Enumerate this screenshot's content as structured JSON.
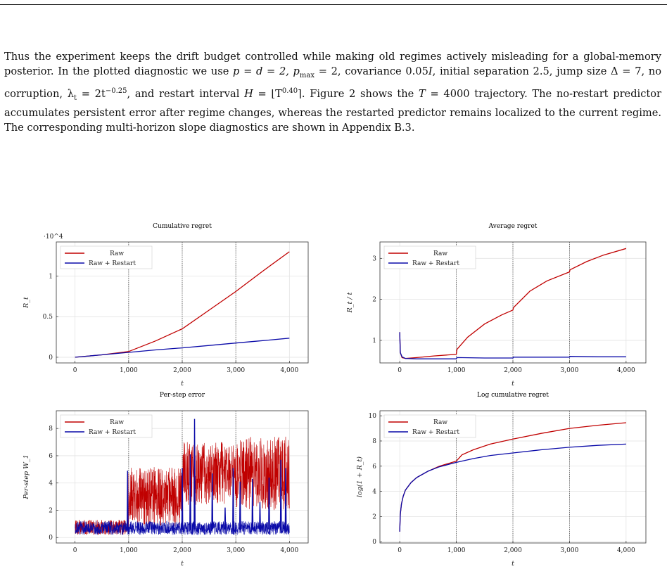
{
  "paragraph": {
    "s1": "Thus the experiment keeps the drift budget controlled while making old regimes actively misleading for a global-memory posterior. In the plotted diagnostic we use ",
    "s2": "p = d = 2, p",
    "s2sub": "max",
    "s3": " = 2, covariance 0.05",
    "s3i": "I",
    "s4": ", initial separation 2.5, jump size Δ = 7, no corruption, λ",
    "s4sub": "t",
    "s5": " = 2t",
    "s5sup": "−0.25",
    "s6": ", and restart interval ",
    "s6i": "H",
    "s7": " = ⌊T",
    "s7sup": "0.40",
    "s8": "⌉. Figure 2 shows the ",
    "s8i": "T",
    "s9": " = 4000 trajectory. The no-restart predictor accumulates persistent error after regime changes, whereas the restarted predictor remains localized to the current regime. The corresponding multi-horizon slope diagnostics are shown in Appendix B.3."
  },
  "colors": {
    "raw": "#c00000",
    "restart": "#0a0aa8"
  },
  "chart_data": [
    {
      "type": "line",
      "title": "Cumulative regret",
      "xlabel": "t",
      "ylabel": "R_t",
      "scale_note": "·10^4",
      "xlim": [
        -350,
        4350
      ],
      "ylim": [
        -0.07,
        1.42
      ],
      "xticks": [
        0,
        1000,
        2000,
        3000,
        4000
      ],
      "xtick_labels": [
        "0",
        "1,000",
        "2,000",
        "3,000",
        "4,000"
      ],
      "yticks": [
        0,
        0.5,
        1
      ],
      "ytick_labels": [
        "0",
        "0.5",
        "1"
      ],
      "vlines": [
        1000,
        2000,
        3000
      ],
      "legend": [
        "Raw",
        "Raw + Restart"
      ],
      "series": [
        {
          "name": "Raw",
          "x": [
            0,
            500,
            1000,
            1500,
            2000,
            2500,
            3000,
            3500,
            4000
          ],
          "values": [
            0,
            0.03,
            0.07,
            0.2,
            0.35,
            0.58,
            0.81,
            1.06,
            1.3
          ]
        },
        {
          "name": "Raw + Restart",
          "x": [
            0,
            500,
            1000,
            1500,
            2000,
            2500,
            3000,
            3500,
            4000
          ],
          "values": [
            0,
            0.03,
            0.06,
            0.09,
            0.115,
            0.145,
            0.175,
            0.205,
            0.235
          ]
        }
      ]
    },
    {
      "type": "line",
      "title": "Average regret",
      "xlabel": "t",
      "ylabel": "R_t / t",
      "xlim": [
        -350,
        4350
      ],
      "ylim": [
        0.45,
        3.4
      ],
      "xticks": [
        0,
        1000,
        2000,
        3000,
        4000
      ],
      "xtick_labels": [
        "0",
        "1,000",
        "2,000",
        "3,000",
        "4,000"
      ],
      "yticks": [
        1,
        2,
        3
      ],
      "ytick_labels": [
        "1",
        "2",
        "3"
      ],
      "vlines": [
        1000,
        2000,
        3000
      ],
      "legend": [
        "Raw",
        "Raw + Restart"
      ],
      "series": [
        {
          "name": "Raw",
          "x": [
            0,
            10,
            40,
            100,
            300,
            600,
            1000,
            1010,
            1200,
            1500,
            1800,
            2000,
            2010,
            2300,
            2600,
            3000,
            3010,
            3300,
            3600,
            4000
          ],
          "values": [
            1.2,
            0.7,
            0.58,
            0.56,
            0.58,
            0.62,
            0.66,
            0.78,
            1.08,
            1.4,
            1.62,
            1.74,
            1.8,
            2.2,
            2.45,
            2.67,
            2.72,
            2.92,
            3.08,
            3.24
          ]
        },
        {
          "name": "Raw + Restart",
          "x": [
            0,
            10,
            40,
            100,
            300,
            600,
            1000,
            1010,
            1500,
            2000,
            2010,
            2500,
            3000,
            3010,
            3500,
            4000
          ],
          "values": [
            1.2,
            0.7,
            0.6,
            0.56,
            0.55,
            0.55,
            0.55,
            0.58,
            0.57,
            0.57,
            0.59,
            0.59,
            0.59,
            0.61,
            0.6,
            0.6
          ]
        }
      ]
    },
    {
      "type": "line",
      "title": "Per-step error",
      "xlabel": "t",
      "ylabel": "Per-step W_1",
      "xlim": [
        -350,
        4350
      ],
      "ylim": [
        -0.4,
        9.3
      ],
      "xticks": [
        0,
        1000,
        2000,
        3000,
        4000
      ],
      "xtick_labels": [
        "0",
        "1,000",
        "2,000",
        "3,000",
        "4,000"
      ],
      "yticks": [
        0,
        2,
        4,
        6,
        8
      ],
      "ytick_labels": [
        "0",
        "2",
        "4",
        "6",
        "8"
      ],
      "vlines": [
        1000,
        2000,
        3000
      ],
      "legend": [
        "Raw",
        "Raw + Restart"
      ],
      "series": [
        {
          "name": "Raw",
          "regimes": [
            {
              "from": 0,
              "to": 1000,
              "low": 0.2,
              "high": 1.3
            },
            {
              "from": 1000,
              "to": 2000,
              "low": 0.8,
              "high": 5.2
            },
            {
              "from": 2000,
              "to": 3000,
              "low": 2.4,
              "high": 7.0
            },
            {
              "from": 3000,
              "to": 4000,
              "low": 2.0,
              "high": 7.4
            }
          ]
        },
        {
          "name": "Raw + Restart",
          "base_low": 0.2,
          "base_high": 1.2,
          "spikes": [
            {
              "x": 980,
              "h": 4.9
            },
            {
              "x": 2000,
              "h": 5.1
            },
            {
              "x": 2150,
              "h": 6.1
            },
            {
              "x": 2230,
              "h": 8.7
            },
            {
              "x": 2560,
              "h": 4.7
            },
            {
              "x": 2800,
              "h": 2.2
            },
            {
              "x": 2950,
              "h": 5.1
            },
            {
              "x": 3080,
              "h": 4.1
            },
            {
              "x": 3310,
              "h": 4.3
            },
            {
              "x": 3450,
              "h": 2.6
            },
            {
              "x": 3620,
              "h": 4.4
            },
            {
              "x": 3840,
              "h": 5.7
            },
            {
              "x": 3930,
              "h": 5.1
            }
          ]
        }
      ]
    },
    {
      "type": "line",
      "title": "Log cumulative regret",
      "xlabel": "t",
      "ylabel": "log(1 + R_t)",
      "xlim": [
        -350,
        4350
      ],
      "ylim": [
        -0.1,
        10.4
      ],
      "xticks": [
        0,
        1000,
        2000,
        3000,
        4000
      ],
      "xtick_labels": [
        "0",
        "1,000",
        "2,000",
        "3,000",
        "4,000"
      ],
      "yticks": [
        0,
        2,
        4,
        6,
        8,
        10
      ],
      "ytick_labels": [
        "0",
        "2",
        "4",
        "6",
        "8",
        "10"
      ],
      "vlines": [
        1000,
        2000,
        3000
      ],
      "legend": [
        "Raw",
        "Raw + Restart"
      ],
      "series": [
        {
          "name": "Raw",
          "x": [
            0,
            10,
            30,
            60,
            100,
            200,
            300,
            500,
            700,
            1000,
            1100,
            1300,
            1600,
            2000,
            2500,
            3000,
            3500,
            4000
          ],
          "values": [
            0.8,
            2.2,
            3.0,
            3.6,
            4.1,
            4.7,
            5.1,
            5.6,
            6.0,
            6.4,
            6.9,
            7.3,
            7.75,
            8.15,
            8.6,
            9.0,
            9.25,
            9.45
          ]
        },
        {
          "name": "Raw + Restart",
          "x": [
            0,
            10,
            30,
            60,
            100,
            200,
            300,
            500,
            700,
            1000,
            1300,
            1600,
            2000,
            2500,
            3000,
            3500,
            4000
          ],
          "values": [
            0.8,
            2.2,
            3.0,
            3.6,
            4.1,
            4.7,
            5.1,
            5.6,
            5.95,
            6.3,
            6.6,
            6.85,
            7.05,
            7.3,
            7.5,
            7.65,
            7.75
          ]
        }
      ]
    }
  ]
}
